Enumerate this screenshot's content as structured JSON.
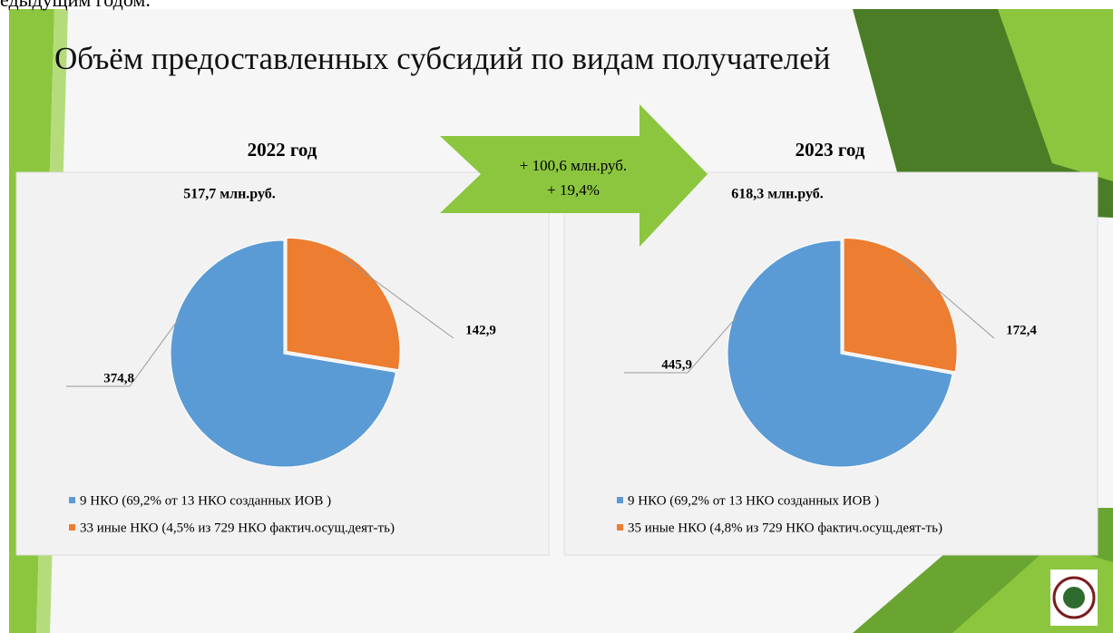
{
  "header_text": "едыдущим годом.",
  "title": "Объём предоставленных субсидий по видам получателей",
  "arrow": {
    "line1": "+ 100,6  млн.руб.",
    "line2": "+ 19,4%"
  },
  "chart_data": [
    {
      "type": "pie",
      "title": "2022 год",
      "subtitle": "517,7 млн.руб.",
      "categories": [
        "9 НКО (69,2% от 13 НКО созданных ИОВ )",
        "33 иные НКО (4,5% из 729 НКО фактич.осущ.деят-ть)"
      ],
      "values": [
        374.8,
        142.9
      ],
      "value_labels": [
        "374,8",
        "142,9"
      ],
      "colors": [
        "#5b9bd5",
        "#ed7d31"
      ]
    },
    {
      "type": "pie",
      "title": "2023 год",
      "subtitle": "618,3 млн.руб.",
      "categories": [
        "9 НКО (69,2% от 13 НКО созданных ИОВ )",
        "35 иные НКО (4,8% из 729 НКО фактич.осущ.деят-ть)"
      ],
      "values": [
        445.9,
        172.4
      ],
      "value_labels": [
        "445,9",
        "172,4"
      ],
      "colors": [
        "#5b9bd5",
        "#ed7d31"
      ]
    }
  ]
}
